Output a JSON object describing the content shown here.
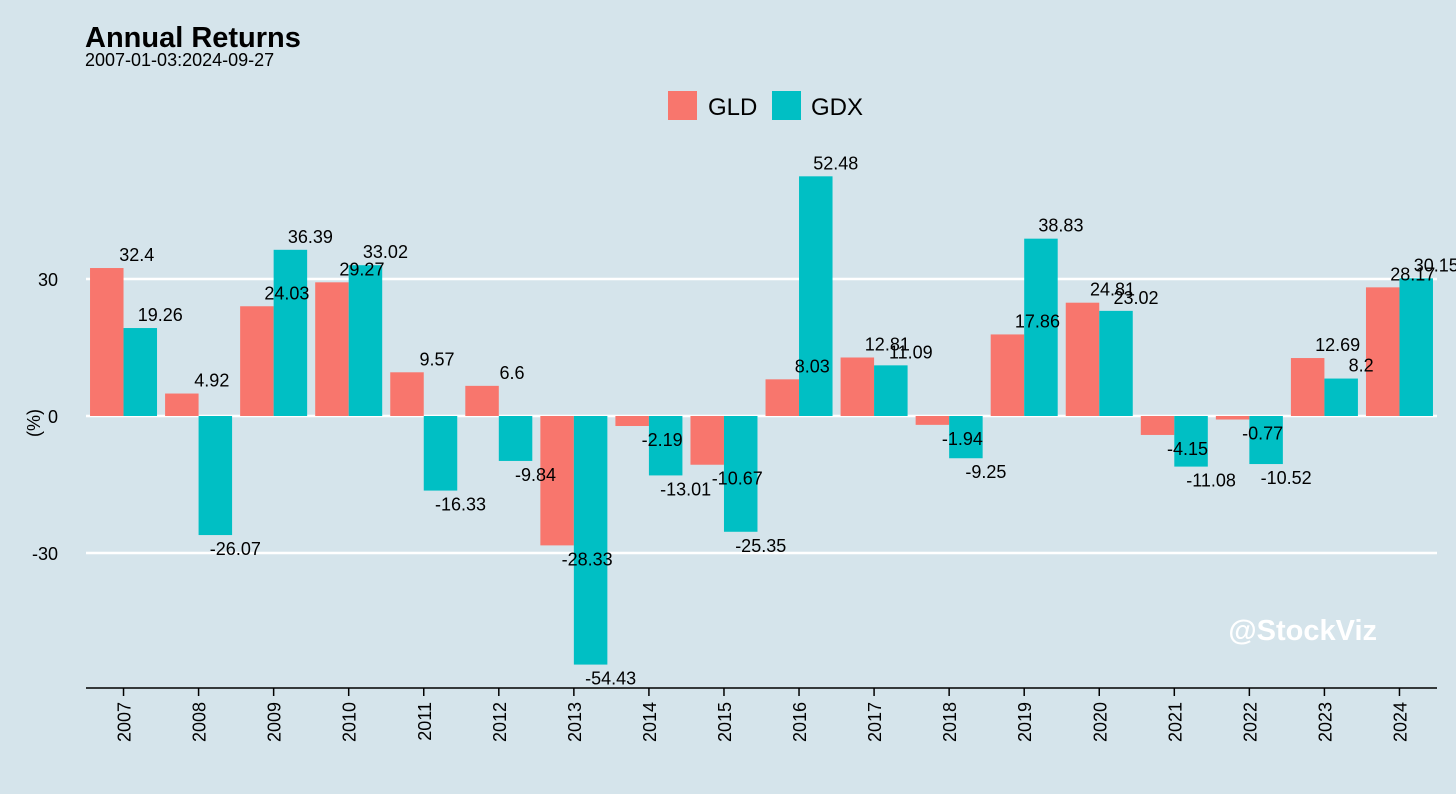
{
  "chart_data": {
    "type": "bar",
    "title": "Annual Returns",
    "subtitle": "2007-01-03:2024-09-27",
    "ylabel": "(%)",
    "xlabel": "",
    "categories": [
      "2007",
      "2008",
      "2009",
      "2010",
      "2011",
      "2012",
      "2013",
      "2014",
      "2015",
      "2016",
      "2017",
      "2018",
      "2019",
      "2020",
      "2021",
      "2022",
      "2023",
      "2024"
    ],
    "series": [
      {
        "name": "GLD",
        "color": "#f8766d",
        "values": [
          32.4,
          4.92,
          24.03,
          29.27,
          9.57,
          6.6,
          -28.33,
          -2.19,
          -10.67,
          8.03,
          12.81,
          -1.94,
          17.86,
          24.81,
          -4.15,
          -0.77,
          12.69,
          28.17
        ],
        "labels": [
          "32.4",
          "4.92",
          "24.03",
          "29.27",
          "9.57",
          "6.6",
          "-28.33",
          "-2.19",
          "-10.67",
          "8.03",
          "12.81",
          "-1.94",
          "17.86",
          "24.81",
          "-4.15",
          "-0.77",
          "12.69",
          "28.17"
        ]
      },
      {
        "name": "GDX",
        "color": "#00bfc4",
        "values": [
          19.26,
          -26.07,
          36.39,
          33.02,
          -16.33,
          -9.84,
          -54.43,
          -13.01,
          -25.35,
          52.48,
          11.09,
          -9.25,
          38.83,
          23.02,
          -11.08,
          -10.52,
          8.2,
          30.15
        ],
        "labels": [
          "19.26",
          "-26.07",
          "36.39",
          "33.02",
          "-16.33",
          "-9.84",
          "-54.43",
          "-13.01",
          "-25.35",
          "52.48",
          "11.09",
          "-9.25",
          "38.83",
          "23.02",
          "-11.08",
          "-10.52",
          "8.2",
          "30.15"
        ]
      }
    ],
    "y_ticks": [
      30,
      0,
      -30
    ],
    "ylim": [
      -60,
      60
    ],
    "grid": "horizontal",
    "legend_position": "top-center"
  },
  "watermark": "@StockViz",
  "colors": {
    "background": "#d5e4eb",
    "gridline": "#ffffff",
    "axis": "#000000"
  }
}
